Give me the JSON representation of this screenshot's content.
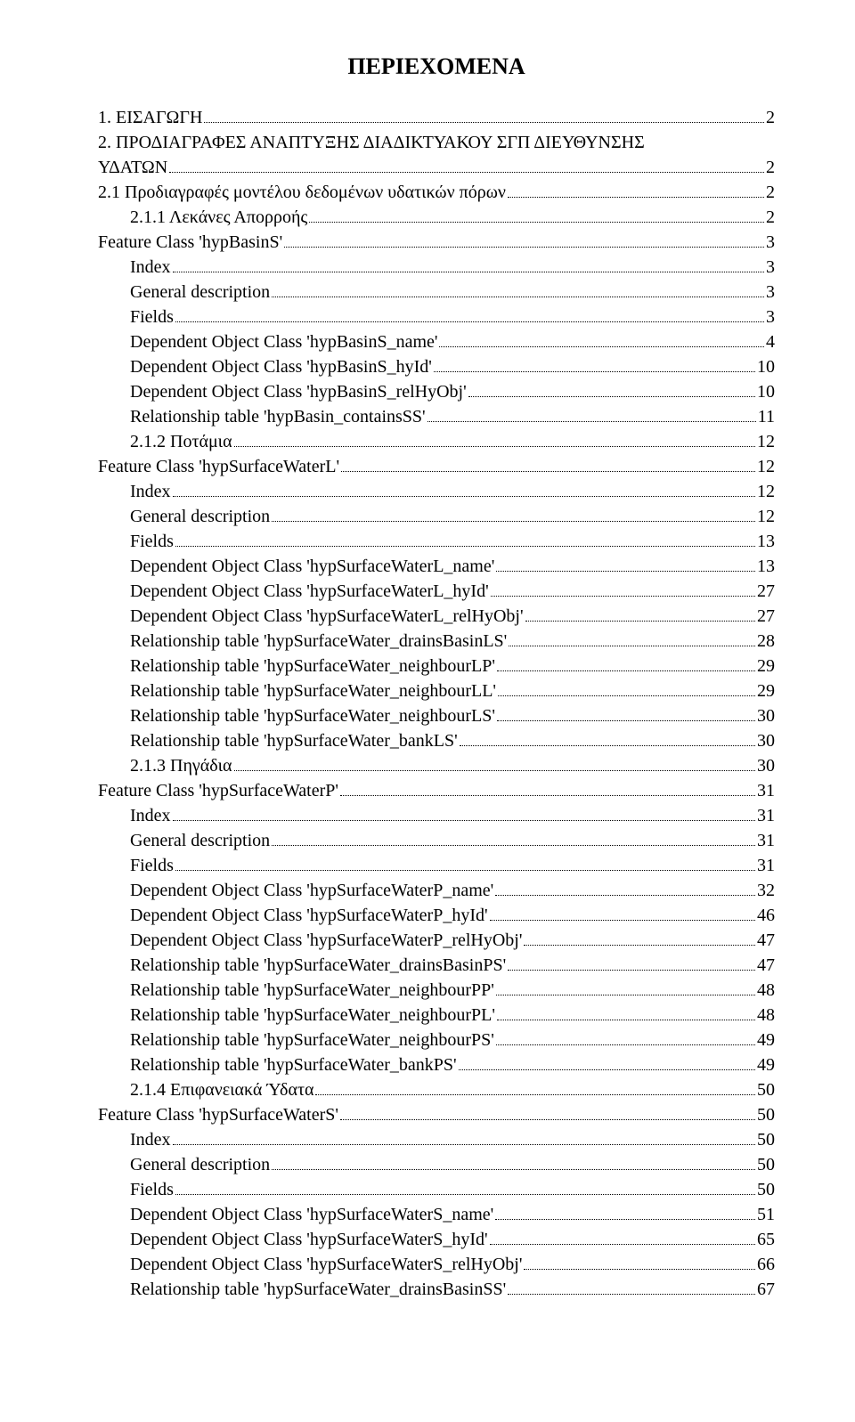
{
  "title": "ΠΕΡΙΕΧΟΜΕΝΑ",
  "entries": [
    {
      "label": "1. ΕΙΣΑΓΩΓΗ",
      "page": "2",
      "indent": 0
    },
    {
      "label": "2. ΠΡΟΔΙΑΓΡΑΦΕΣ ΑΝΑΠΤΥΞΗΣ ΔΙΑΔΙΚΤΥΑΚΟΥ ΣΓΠ ΔΙΕΥΘΥΝΣΗΣ",
      "indent": 0
    },
    {
      "label": "ΥΔΑΤΩΝ",
      "page": "2",
      "indent": 0
    },
    {
      "label": "2.1 Προδιαγραφές μοντέλου δεδομένων υδατικών πόρων",
      "page": "2",
      "indent": 0
    },
    {
      "label": "2.1.1 Λεκάνες Απορροής",
      "page": "2",
      "indent": 1
    },
    {
      "label": "Feature Class 'hypBasinS'",
      "page": "3",
      "indent": 0
    },
    {
      "label": "Index",
      "page": "3",
      "indent": 1
    },
    {
      "label": "General description",
      "page": "3",
      "indent": 1
    },
    {
      "label": "Fields",
      "page": "3",
      "indent": 1
    },
    {
      "label": "Dependent Object Class 'hypBasinS_name'",
      "page": "4",
      "indent": 1
    },
    {
      "label": "Dependent Object Class 'hypBasinS_hyId'",
      "page": "10",
      "indent": 1
    },
    {
      "label": "Dependent Object Class 'hypBasinS_relHyObj'",
      "page": "10",
      "indent": 1
    },
    {
      "label": "Relationship table 'hypBasin_containsSS'",
      "page": "11",
      "indent": 1
    },
    {
      "label": "2.1.2 Ποτάμια",
      "page": "12",
      "indent": 1
    },
    {
      "label": "Feature Class 'hypSurfaceWaterL'",
      "page": "12",
      "indent": 0
    },
    {
      "label": "Index",
      "page": "12",
      "indent": 1
    },
    {
      "label": "General description",
      "page": "12",
      "indent": 1
    },
    {
      "label": "Fields",
      "page": "13",
      "indent": 1
    },
    {
      "label": "Dependent Object Class 'hypSurfaceWaterL_name'",
      "page": "13",
      "indent": 1
    },
    {
      "label": "Dependent Object Class 'hypSurfaceWaterL_hyId'",
      "page": "27",
      "indent": 1
    },
    {
      "label": "Dependent Object Class 'hypSurfaceWaterL_relHyObj'",
      "page": "27",
      "indent": 1
    },
    {
      "label": "Relationship table 'hypSurfaceWater_drainsBasinLS'",
      "page": "28",
      "indent": 1
    },
    {
      "label": "Relationship table 'hypSurfaceWater_neighbourLP'",
      "page": "29",
      "indent": 1
    },
    {
      "label": "Relationship table 'hypSurfaceWater_neighbourLL'",
      "page": "29",
      "indent": 1
    },
    {
      "label": "Relationship table 'hypSurfaceWater_neighbourLS'",
      "page": "30",
      "indent": 1
    },
    {
      "label": "Relationship table 'hypSurfaceWater_bankLS'",
      "page": "30",
      "indent": 1
    },
    {
      "label": "2.1.3 Πηγάδια",
      "page": "30",
      "indent": 1
    },
    {
      "label": "Feature Class 'hypSurfaceWaterP'",
      "page": "31",
      "indent": 0
    },
    {
      "label": "Index",
      "page": "31",
      "indent": 1
    },
    {
      "label": "General description",
      "page": "31",
      "indent": 1
    },
    {
      "label": "Fields",
      "page": "31",
      "indent": 1
    },
    {
      "label": "Dependent Object Class 'hypSurfaceWaterP_name'",
      "page": "32",
      "indent": 1
    },
    {
      "label": "Dependent Object Class 'hypSurfaceWaterP_hyId'",
      "page": "46",
      "indent": 1
    },
    {
      "label": "Dependent Object Class 'hypSurfaceWaterP_relHyObj'",
      "page": "47",
      "indent": 1
    },
    {
      "label": "Relationship table 'hypSurfaceWater_drainsBasinPS'",
      "page": "47",
      "indent": 1
    },
    {
      "label": "Relationship table 'hypSurfaceWater_neighbourPP'",
      "page": "48",
      "indent": 1
    },
    {
      "label": "Relationship table 'hypSurfaceWater_neighbourPL'",
      "page": "48",
      "indent": 1
    },
    {
      "label": "Relationship table 'hypSurfaceWater_neighbourPS'",
      "page": "49",
      "indent": 1
    },
    {
      "label": "Relationship table 'hypSurfaceWater_bankPS'",
      "page": "49",
      "indent": 1
    },
    {
      "label": "2.1.4 Επιφανειακά Ύδατα",
      "page": "50",
      "indent": 1
    },
    {
      "label": "Feature Class 'hypSurfaceWaterS'",
      "page": "50",
      "indent": 0
    },
    {
      "label": "Index",
      "page": "50",
      "indent": 1
    },
    {
      "label": "General description",
      "page": "50",
      "indent": 1
    },
    {
      "label": "Fields",
      "page": "50",
      "indent": 1
    },
    {
      "label": "Dependent Object Class 'hypSurfaceWaterS_name'",
      "page": "51",
      "indent": 1
    },
    {
      "label": "Dependent Object Class 'hypSurfaceWaterS_hyId'",
      "page": "65",
      "indent": 1
    },
    {
      "label": "Dependent Object Class 'hypSurfaceWaterS_relHyObj'",
      "page": "66",
      "indent": 1
    },
    {
      "label": "Relationship table 'hypSurfaceWater_drainsBasinSS'",
      "page": "67",
      "indent": 1
    }
  ]
}
